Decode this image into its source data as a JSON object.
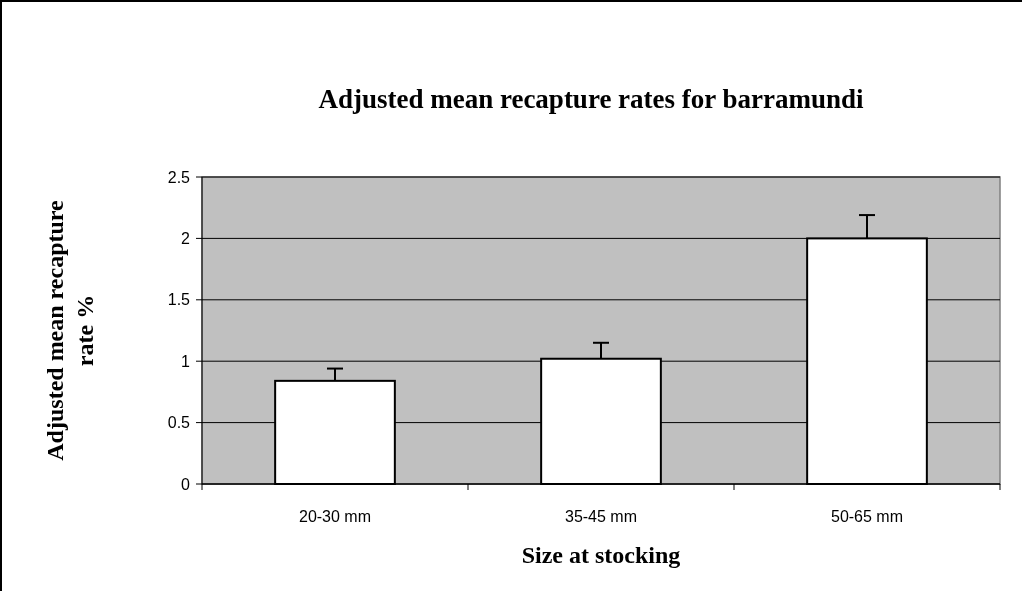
{
  "chart_data": {
    "type": "bar",
    "title": "Adjusted mean recapture rates for barramundi",
    "xlabel": "Size at stocking",
    "ylabel": "Adjusted mean recapture rate %",
    "categories": [
      "20-30 mm",
      "35-45 mm",
      "50-65 mm"
    ],
    "values": [
      0.84,
      1.02,
      2.0
    ],
    "errors": [
      [
        0.84,
        0.94
      ],
      [
        1.02,
        1.15
      ],
      [
        2.0,
        2.19
      ]
    ],
    "color": "#ffffff",
    "ylim": [
      0,
      2.5
    ],
    "yticks": [
      0,
      0.5,
      1,
      1.5,
      2,
      2.5
    ],
    "grid": "y"
  }
}
